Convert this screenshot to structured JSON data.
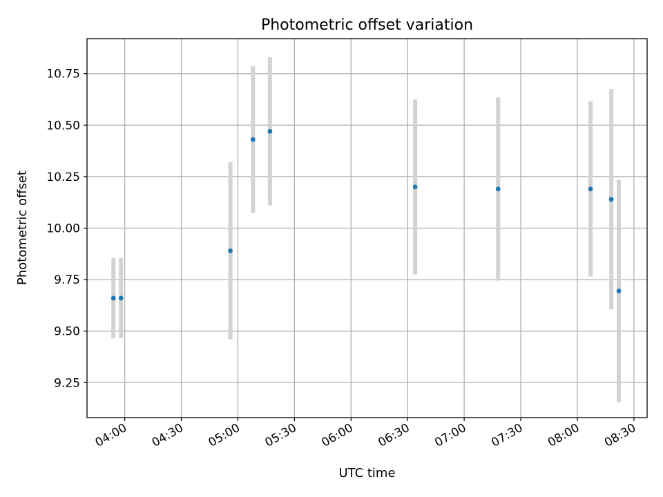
{
  "chart_data": {
    "type": "scatter",
    "title": "Photometric offset variation",
    "xlabel": "UTC time",
    "ylabel": "Photometric offset",
    "xlim": [
      "03:40",
      "08:37"
    ],
    "ylim": [
      9.08,
      10.92
    ],
    "x_ticks": [
      "04:00",
      "04:30",
      "05:00",
      "05:30",
      "06:00",
      "06:30",
      "07:00",
      "07:30",
      "08:00",
      "08:30"
    ],
    "y_ticks": [
      9.25,
      9.5,
      9.75,
      10.0,
      10.25,
      10.5,
      10.75
    ],
    "y_tick_labels": [
      "9.25",
      "9.50",
      "9.75",
      "10.00",
      "10.25",
      "10.50",
      "10.75"
    ],
    "grid": true,
    "series": [
      {
        "marker_color": "#1f77b4",
        "errorbar_color": "#d3d3d3",
        "points": [
          {
            "x": "03:54",
            "y": 9.66,
            "yerr": 0.195
          },
          {
            "x": "03:58",
            "y": 9.66,
            "yerr": 0.195
          },
          {
            "x": "04:56",
            "y": 9.89,
            "yerr": 0.43
          },
          {
            "x": "05:08",
            "y": 10.43,
            "yerr": 0.355
          },
          {
            "x": "05:17",
            "y": 10.47,
            "yerr": 0.36
          },
          {
            "x": "06:34",
            "y": 10.2,
            "yerr": 0.425
          },
          {
            "x": "07:18",
            "y": 10.19,
            "yerr": 0.445
          },
          {
            "x": "08:07",
            "y": 10.19,
            "yerr": 0.425
          },
          {
            "x": "08:18",
            "y": 10.14,
            "yerr": 0.535
          },
          {
            "x": "08:22",
            "y": 9.695,
            "yerr": 0.54
          }
        ]
      }
    ]
  }
}
